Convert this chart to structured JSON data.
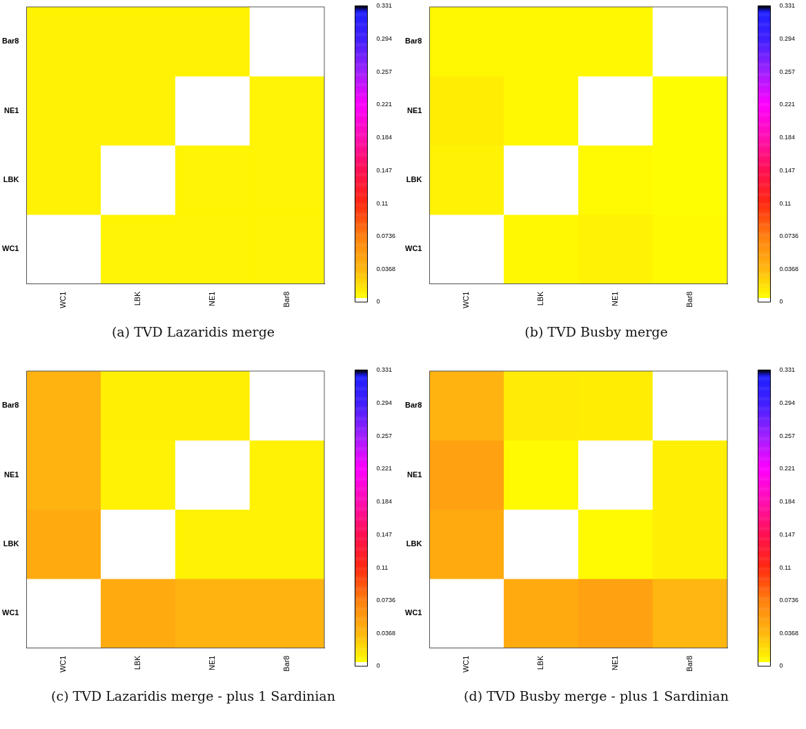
{
  "chart_data": [
    {
      "type": "heatmap",
      "title": "(a) TVD Lazaridis merge",
      "categories": [
        "WC1",
        "LBK",
        "NE1",
        "Bar8"
      ],
      "y_categories": [
        "Bar8",
        "NE1",
        "LBK",
        "WC1"
      ],
      "cells": [
        [
          0.011,
          0.011,
          0.011,
          0
        ],
        [
          0.011,
          0.011,
          0,
          0.01
        ],
        [
          0.011,
          0,
          0.01,
          0.01
        ],
        [
          0,
          0.01,
          0.01,
          0.01
        ]
      ],
      "clim": [
        0,
        0.331
      ],
      "cticks": [
        0,
        0.0368,
        0.0736,
        0.11,
        0.147,
        0.184,
        0.221,
        0.257,
        0.294,
        0.331
      ]
    },
    {
      "type": "heatmap",
      "title": "(b) TVD Busby merge",
      "categories": [
        "WC1",
        "LBK",
        "NE1",
        "Bar8"
      ],
      "y_categories": [
        "Bar8",
        "NE1",
        "LBK",
        "WC1"
      ],
      "cells": [
        [
          0.008,
          0.008,
          0.008,
          0
        ],
        [
          0.013,
          0.008,
          0,
          0.006
        ],
        [
          0.011,
          0,
          0.007,
          0.006
        ],
        [
          0,
          0.008,
          0.011,
          0.007
        ]
      ],
      "clim": [
        0,
        0.331
      ],
      "cticks": [
        0,
        0.0368,
        0.0736,
        0.11,
        0.147,
        0.184,
        0.221,
        0.257,
        0.294,
        0.331
      ]
    },
    {
      "type": "heatmap",
      "title": "(c) TVD Lazaridis merge - plus 1 Sardinian",
      "categories": [
        "WC1",
        "LBK",
        "NE1",
        "Bar8"
      ],
      "y_categories": [
        "Bar8",
        "NE1",
        "LBK",
        "WC1"
      ],
      "cells": [
        [
          0.04,
          0.012,
          0.012,
          0
        ],
        [
          0.04,
          0.011,
          0,
          0.011
        ],
        [
          0.045,
          0,
          0.011,
          0.011
        ],
        [
          0,
          0.045,
          0.04,
          0.04
        ]
      ],
      "clim": [
        0,
        0.331
      ],
      "cticks": [
        0,
        0.0368,
        0.0736,
        0.11,
        0.147,
        0.184,
        0.221,
        0.257,
        0.294,
        0.331
      ]
    },
    {
      "type": "heatmap",
      "title": "(d) TVD Busby merge - plus 1 Sardinian",
      "categories": [
        "WC1",
        "LBK",
        "NE1",
        "Bar8"
      ],
      "y_categories": [
        "Bar8",
        "NE1",
        "LBK",
        "WC1"
      ],
      "cells": [
        [
          0.04,
          0.014,
          0.013,
          0
        ],
        [
          0.052,
          0.007,
          0,
          0.012
        ],
        [
          0.045,
          0,
          0.007,
          0.012
        ],
        [
          0,
          0.045,
          0.052,
          0.038
        ]
      ],
      "clim": [
        0,
        0.331
      ],
      "cticks": [
        0,
        0.0368,
        0.0736,
        0.11,
        0.147,
        0.184,
        0.221,
        0.257,
        0.294,
        0.331
      ]
    }
  ]
}
